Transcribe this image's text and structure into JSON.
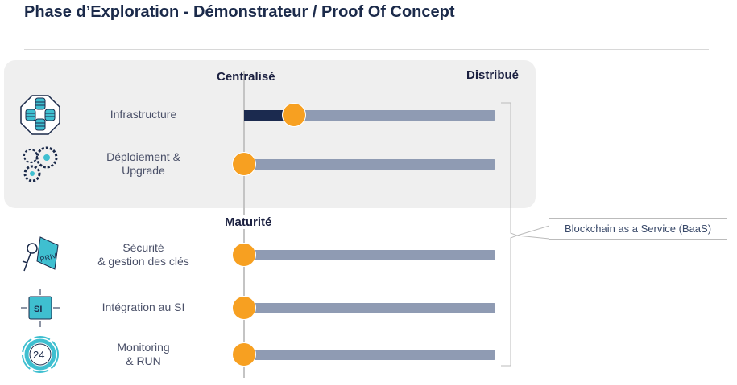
{
  "title": "Phase d’Exploration - Démonstrateur / Proof Of Concept",
  "axis": {
    "left_label": "Centralisé",
    "right_label": "Distribué",
    "section_label": "Maturité"
  },
  "rows": [
    {
      "label_line1": "Infrastructure",
      "label_line2": "",
      "icon": "database-cluster-icon",
      "value": 0.2
    },
    {
      "label_line1": "Déploiement &",
      "label_line2": "Upgrade",
      "icon": "gears-icon",
      "value": 0
    },
    {
      "label_line1": "Sécurité",
      "label_line2": "& gestion des clés",
      "icon": "key-tag-icon",
      "value": 0
    },
    {
      "label_line1": "Intégration au SI",
      "label_line2": "",
      "icon": "si-integration-icon",
      "value": 0
    },
    {
      "label_line1": "Monitoring",
      "label_line2": "& RUN",
      "icon": "24h-cycle-icon",
      "value": 0
    }
  ],
  "callout": {
    "text": "Blockchain as a Service (BaaS)"
  },
  "colors": {
    "knob": "#f7a021",
    "track": "#8f9bb3",
    "fill": "#1b2a4f",
    "icon": "#3fbfd0",
    "panel": "#efefef"
  }
}
